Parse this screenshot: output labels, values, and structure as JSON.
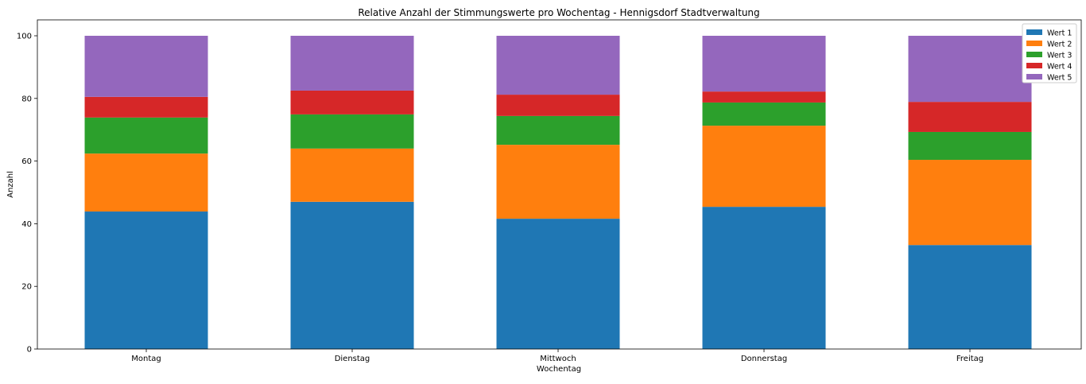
{
  "chart_data": {
    "type": "bar",
    "stacked": true,
    "title": "Relative Anzahl der Stimmungswerte pro Wochentag - Hennigsdorf Stadtverwaltung",
    "xlabel": "Wochentag",
    "ylabel": "Anzahl",
    "ylim": [
      0,
      100
    ],
    "yticks": [
      0,
      20,
      40,
      60,
      80,
      100
    ],
    "categories": [
      "Montag",
      "Dienstag",
      "Mittwoch",
      "Donnerstag",
      "Freitag"
    ],
    "legend_position": "top-right",
    "series": [
      {
        "name": "Wert 1",
        "color": "#1f77b4",
        "values": [
          43.9,
          47.0,
          41.6,
          45.4,
          33.2
        ]
      },
      {
        "name": "Wert 2",
        "color": "#ff7f0e",
        "values": [
          18.5,
          17.0,
          23.6,
          25.9,
          27.2
        ]
      },
      {
        "name": "Wert 3",
        "color": "#2ca02c",
        "values": [
          11.5,
          10.9,
          9.2,
          7.4,
          8.9
        ]
      },
      {
        "name": "Wert 4",
        "color": "#d62728",
        "values": [
          6.6,
          7.6,
          6.8,
          3.5,
          9.6
        ]
      },
      {
        "name": "Wert 5",
        "color": "#9467bd",
        "values": [
          19.5,
          17.5,
          18.8,
          17.8,
          21.1
        ]
      }
    ]
  }
}
